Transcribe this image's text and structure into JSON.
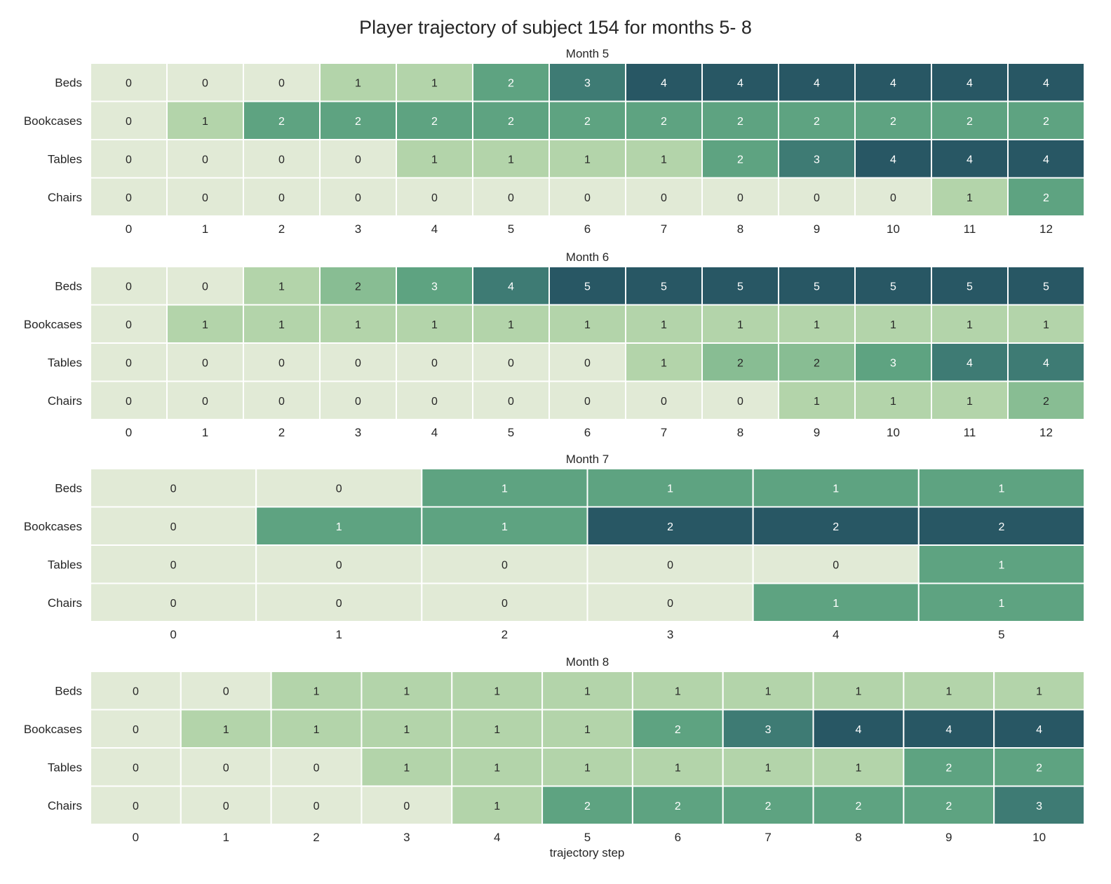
{
  "title": "Player trajectory of subject 154 for months 5- 8",
  "chart_data": {
    "type": "heatmap",
    "title": "Player trajectory of subject 154 for months 5- 8",
    "xlabel": "trajectory step",
    "rows": [
      "Beds",
      "Bookcases",
      "Tables",
      "Chairs"
    ],
    "colormap": [
      "#e1ead6",
      "#b3d4aa",
      "#88bd93",
      "#5ea381",
      "#3e7b74",
      "#285764"
    ],
    "panels": [
      {
        "title": "Month 5",
        "x": [
          "0",
          "1",
          "2",
          "3",
          "4",
          "5",
          "6",
          "7",
          "8",
          "9",
          "10",
          "11",
          "12"
        ],
        "max": 4,
        "values": [
          [
            0,
            0,
            0,
            1,
            1,
            2,
            3,
            4,
            4,
            4,
            4,
            4,
            4
          ],
          [
            0,
            1,
            2,
            2,
            2,
            2,
            2,
            2,
            2,
            2,
            2,
            2,
            2
          ],
          [
            0,
            0,
            0,
            0,
            1,
            1,
            1,
            1,
            2,
            3,
            4,
            4,
            4
          ],
          [
            0,
            0,
            0,
            0,
            0,
            0,
            0,
            0,
            0,
            0,
            0,
            1,
            2
          ]
        ]
      },
      {
        "title": "Month 6",
        "x": [
          "0",
          "1",
          "2",
          "3",
          "4",
          "5",
          "6",
          "7",
          "8",
          "9",
          "10",
          "11",
          "12"
        ],
        "max": 5,
        "values": [
          [
            0,
            0,
            1,
            2,
            3,
            4,
            5,
            5,
            5,
            5,
            5,
            5,
            5
          ],
          [
            0,
            1,
            1,
            1,
            1,
            1,
            1,
            1,
            1,
            1,
            1,
            1,
            1
          ],
          [
            0,
            0,
            0,
            0,
            0,
            0,
            0,
            1,
            2,
            2,
            3,
            4,
            4
          ],
          [
            0,
            0,
            0,
            0,
            0,
            0,
            0,
            0,
            0,
            1,
            1,
            1,
            2
          ]
        ]
      },
      {
        "title": "Month 7",
        "x": [
          "0",
          "1",
          "2",
          "3",
          "4",
          "5"
        ],
        "max": 2,
        "values": [
          [
            0,
            0,
            1,
            1,
            1,
            1
          ],
          [
            0,
            1,
            1,
            2,
            2,
            2
          ],
          [
            0,
            0,
            0,
            0,
            0,
            1
          ],
          [
            0,
            0,
            0,
            0,
            1,
            1
          ]
        ]
      },
      {
        "title": "Month 8",
        "x": [
          "0",
          "1",
          "2",
          "3",
          "4",
          "5",
          "6",
          "7",
          "8",
          "9",
          "10"
        ],
        "max": 4,
        "values": [
          [
            0,
            0,
            1,
            1,
            1,
            1,
            1,
            1,
            1,
            1,
            1
          ],
          [
            0,
            1,
            1,
            1,
            1,
            1,
            2,
            3,
            4,
            4,
            4
          ],
          [
            0,
            0,
            0,
            1,
            1,
            1,
            1,
            1,
            1,
            2,
            2
          ],
          [
            0,
            0,
            0,
            0,
            1,
            2,
            2,
            2,
            2,
            2,
            3
          ]
        ]
      }
    ]
  }
}
